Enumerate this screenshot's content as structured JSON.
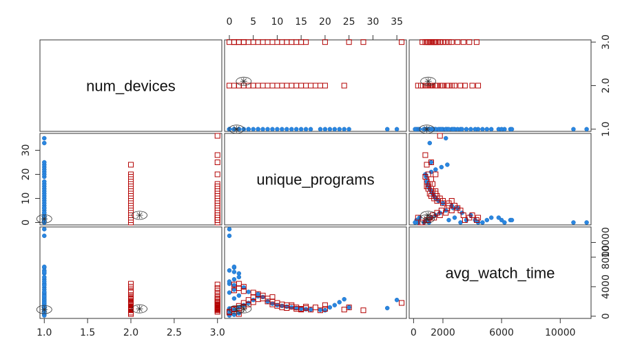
{
  "chart_data": {
    "type": "scatter",
    "variables": [
      "num_devices",
      "unique_programs",
      "avg_watch_time"
    ],
    "ranges": {
      "num_devices": [
        0.95,
        3.05
      ],
      "unique_programs": [
        -1,
        37
      ],
      "avg_watch_time": [
        -300,
        12100
      ]
    },
    "axis_ticks": {
      "num_devices_bottom": [
        "1.0",
        "1.5",
        "2.0",
        "2.5",
        "3.0"
      ],
      "num_devices_right": [
        "1.0",
        "2.0",
        "3.0"
      ],
      "unique_programs_top": [
        "0",
        "5",
        "10",
        "15",
        "20",
        "25",
        "30",
        "35"
      ],
      "unique_programs_left": [
        "0",
        "10",
        "20",
        "30"
      ],
      "avg_watch_time_bottom": [
        "0",
        "2000",
        "6000",
        "10000"
      ],
      "avg_watch_time_right": [
        "0",
        "4000",
        "8000",
        "10000"
      ]
    },
    "colors": {
      "group1": "#2a86e0",
      "group2": "#b30000"
    },
    "markers": {
      "group1": "filled-circle",
      "group2": "open-square"
    },
    "points": [
      {
        "d": 1,
        "u": 0,
        "w": 1050
      },
      {
        "d": 1,
        "u": 1,
        "w": 900
      },
      {
        "d": 1,
        "u": 2,
        "w": 1200
      },
      {
        "d": 1,
        "u": 3,
        "w": 1500
      },
      {
        "d": 1,
        "u": 4,
        "w": 1800
      },
      {
        "d": 1,
        "u": 5,
        "w": 2200
      },
      {
        "d": 1,
        "u": 6,
        "w": 3000
      },
      {
        "d": 1,
        "u": 7,
        "w": 2600
      },
      {
        "d": 1,
        "u": 8,
        "w": 2000
      },
      {
        "d": 1,
        "u": 9,
        "w": 1700
      },
      {
        "d": 1,
        "u": 10,
        "w": 1500
      },
      {
        "d": 1,
        "u": 11,
        "w": 1400
      },
      {
        "d": 1,
        "u": 12,
        "w": 1300
      },
      {
        "d": 1,
        "u": 13,
        "w": 1200
      },
      {
        "d": 1,
        "u": 14,
        "w": 1100
      },
      {
        "d": 1,
        "u": 15,
        "w": 1000
      },
      {
        "d": 1,
        "u": 16,
        "w": 950
      },
      {
        "d": 1,
        "u": 17,
        "w": 900
      },
      {
        "d": 1,
        "u": 19,
        "w": 850
      },
      {
        "d": 1,
        "u": 20,
        "w": 800
      },
      {
        "d": 1,
        "u": 21,
        "w": 1200
      },
      {
        "d": 1,
        "u": 22,
        "w": 1500
      },
      {
        "d": 1,
        "u": 23,
        "w": 1900
      },
      {
        "d": 1,
        "u": 24,
        "w": 2300
      },
      {
        "d": 1,
        "u": 25,
        "w": 1200
      },
      {
        "d": 1,
        "u": 33,
        "w": 1100
      },
      {
        "d": 1,
        "u": 35,
        "w": 2200
      },
      {
        "d": 1,
        "u": 1,
        "w": 6600
      },
      {
        "d": 1,
        "u": 0,
        "w": 6200
      },
      {
        "d": 1,
        "u": 2,
        "w": 5800
      },
      {
        "d": 1,
        "u": 0,
        "w": 10900
      },
      {
        "d": 1,
        "u": 1,
        "w": 5000
      },
      {
        "d": 1,
        "u": 0,
        "w": 4400
      },
      {
        "d": 1,
        "u": 3,
        "w": 3900
      },
      {
        "d": 1,
        "u": 1,
        "w": 3600
      },
      {
        "d": 1,
        "u": 0,
        "w": 3200
      },
      {
        "d": 1,
        "u": 2,
        "w": 2800
      },
      {
        "d": 1,
        "u": 1,
        "w": 2400
      },
      {
        "d": 1,
        "u": 0,
        "w": 300
      },
      {
        "d": 1,
        "u": 1,
        "w": 200
      },
      {
        "d": 1,
        "u": 0,
        "w": 100
      },
      {
        "d": 1,
        "u": 2,
        "w": 400
      },
      {
        "d": 1,
        "u": 0,
        "w": 700
      },
      {
        "d": 1,
        "u": 1,
        "w": 4200
      },
      {
        "d": 1,
        "u": 0,
        "w": 4700
      },
      {
        "d": 1,
        "u": 2,
        "w": 5300
      },
      {
        "d": 1,
        "u": 1,
        "w": 6000
      },
      {
        "d": 1,
        "u": 0,
        "w": 11800
      },
      {
        "d": 1,
        "u": 1,
        "w": 6700
      },
      {
        "d": 1,
        "u": 4,
        "w": 3300
      },
      {
        "d": 1,
        "u": 6,
        "w": 2700
      },
      {
        "d": 2,
        "u": 1,
        "w": 900
      },
      {
        "d": 2,
        "u": 2,
        "w": 1100
      },
      {
        "d": 2,
        "u": 3,
        "w": 1300
      },
      {
        "d": 2,
        "u": 4,
        "w": 1600
      },
      {
        "d": 2,
        "u": 5,
        "w": 1900
      },
      {
        "d": 2,
        "u": 6,
        "w": 2300
      },
      {
        "d": 2,
        "u": 7,
        "w": 2800
      },
      {
        "d": 2,
        "u": 8,
        "w": 2400
      },
      {
        "d": 2,
        "u": 9,
        "w": 2000
      },
      {
        "d": 2,
        "u": 10,
        "w": 1800
      },
      {
        "d": 2,
        "u": 11,
        "w": 1600
      },
      {
        "d": 2,
        "u": 12,
        "w": 1500
      },
      {
        "d": 2,
        "u": 13,
        "w": 1300
      },
      {
        "d": 2,
        "u": 14,
        "w": 1200
      },
      {
        "d": 2,
        "u": 15,
        "w": 1000
      },
      {
        "d": 2,
        "u": 16,
        "w": 1100
      },
      {
        "d": 2,
        "u": 17,
        "w": 900
      },
      {
        "d": 2,
        "u": 18,
        "w": 1200
      },
      {
        "d": 2,
        "u": 19,
        "w": 800
      },
      {
        "d": 2,
        "u": 20,
        "w": 1000
      },
      {
        "d": 2,
        "u": 24,
        "w": 900
      },
      {
        "d": 2,
        "u": 2,
        "w": 4400
      },
      {
        "d": 2,
        "u": 3,
        "w": 4000
      },
      {
        "d": 2,
        "u": 1,
        "w": 3500
      },
      {
        "d": 2,
        "u": 0,
        "w": 500
      },
      {
        "d": 2,
        "u": 5,
        "w": 3200
      },
      {
        "d": 2,
        "u": 9,
        "w": 2600
      },
      {
        "d": 2,
        "u": 2,
        "w": 300
      },
      {
        "d": 3,
        "u": 1,
        "w": 1000
      },
      {
        "d": 3,
        "u": 2,
        "w": 1400
      },
      {
        "d": 3,
        "u": 3,
        "w": 1800
      },
      {
        "d": 3,
        "u": 4,
        "w": 2200
      },
      {
        "d": 3,
        "u": 5,
        "w": 2600
      },
      {
        "d": 3,
        "u": 6,
        "w": 3000
      },
      {
        "d": 3,
        "u": 7,
        "w": 2400
      },
      {
        "d": 3,
        "u": 8,
        "w": 2000
      },
      {
        "d": 3,
        "u": 9,
        "w": 1600
      },
      {
        "d": 3,
        "u": 10,
        "w": 1400
      },
      {
        "d": 3,
        "u": 11,
        "w": 1200
      },
      {
        "d": 3,
        "u": 12,
        "w": 1100
      },
      {
        "d": 3,
        "u": 13,
        "w": 1500
      },
      {
        "d": 3,
        "u": 14,
        "w": 1000
      },
      {
        "d": 3,
        "u": 15,
        "w": 900
      },
      {
        "d": 3,
        "u": 16,
        "w": 1300
      },
      {
        "d": 3,
        "u": 20,
        "w": 1500
      },
      {
        "d": 3,
        "u": 25,
        "w": 1200
      },
      {
        "d": 3,
        "u": 28,
        "w": 800
      },
      {
        "d": 3,
        "u": 36,
        "w": 1800
      },
      {
        "d": 3,
        "u": 2,
        "w": 3800
      },
      {
        "d": 3,
        "u": 1,
        "w": 4300
      },
      {
        "d": 3,
        "u": 3,
        "w": 3400
      },
      {
        "d": 3,
        "u": 0,
        "w": 600
      }
    ],
    "ellipses": [
      {
        "d": 1.0,
        "u": 1.5,
        "w": 900,
        "group": "group1"
      },
      {
        "d": 2.1,
        "u": 3.0,
        "w": 1000,
        "group": "group2"
      }
    ]
  }
}
